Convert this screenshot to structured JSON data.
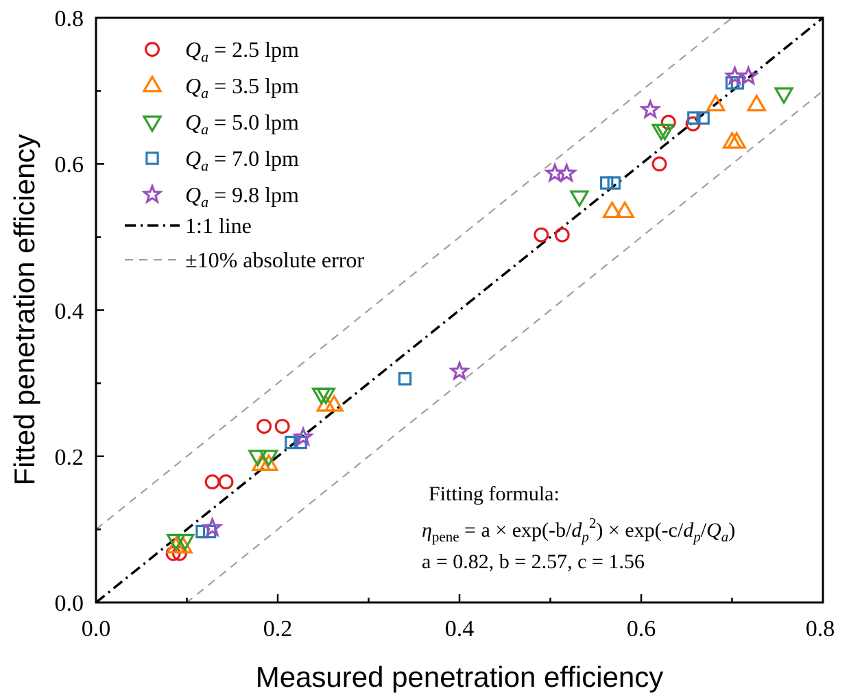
{
  "chart_data": {
    "type": "scatter",
    "xlabel": "Measured penetration efficiency",
    "ylabel": "Fitted penetration efficiency",
    "xlim": [
      0.0,
      0.8
    ],
    "ylim": [
      0.0,
      0.8
    ],
    "xticks": [
      "0.0",
      "0.2",
      "0.4",
      "0.6",
      "0.8"
    ],
    "yticks": [
      "0.0",
      "0.2",
      "0.4",
      "0.6",
      "0.8"
    ],
    "xtick_values": [
      0.0,
      0.2,
      0.4,
      0.6,
      0.8
    ],
    "ytick_values": [
      0.0,
      0.2,
      0.4,
      0.6,
      0.8
    ],
    "grid": false,
    "legend_position": "top-left",
    "series": [
      {
        "name_var": "Q",
        "name_sub": "a",
        "name_rest": " = 2.5 lpm",
        "marker": "circle",
        "color": "#e41a1c",
        "points": [
          [
            0.085,
            0.067
          ],
          [
            0.092,
            0.067
          ],
          [
            0.128,
            0.165
          ],
          [
            0.143,
            0.165
          ],
          [
            0.185,
            0.241
          ],
          [
            0.205,
            0.241
          ],
          [
            0.49,
            0.503
          ],
          [
            0.513,
            0.503
          ],
          [
            0.62,
            0.6
          ],
          [
            0.63,
            0.657
          ],
          [
            0.657,
            0.655
          ]
        ]
      },
      {
        "name_var": "Q",
        "name_sub": "a",
        "name_rest": " = 3.5 lpm",
        "marker": "triangle-up",
        "color": "#ff7f00",
        "points": [
          [
            0.088,
            0.076
          ],
          [
            0.096,
            0.076
          ],
          [
            0.182,
            0.189
          ],
          [
            0.19,
            0.189
          ],
          [
            0.253,
            0.27
          ],
          [
            0.262,
            0.27
          ],
          [
            0.568,
            0.535
          ],
          [
            0.582,
            0.535
          ],
          [
            0.682,
            0.681
          ],
          [
            0.7,
            0.63
          ],
          [
            0.705,
            0.63
          ],
          [
            0.727,
            0.681
          ]
        ]
      },
      {
        "name_var": "Q",
        "name_sub": "a",
        "name_rest": " = 5.0 lpm",
        "marker": "triangle-down",
        "color": "#33a02c",
        "points": [
          [
            0.088,
            0.085
          ],
          [
            0.098,
            0.085
          ],
          [
            0.178,
            0.2
          ],
          [
            0.19,
            0.2
          ],
          [
            0.248,
            0.285
          ],
          [
            0.253,
            0.285
          ],
          [
            0.532,
            0.555
          ],
          [
            0.622,
            0.646
          ],
          [
            0.626,
            0.646
          ],
          [
            0.757,
            0.696
          ]
        ]
      },
      {
        "name_var": "Q",
        "name_sub": "a",
        "name_rest": " = 7.0 lpm",
        "marker": "square",
        "color": "#2c7bb6",
        "points": [
          [
            0.117,
            0.097
          ],
          [
            0.125,
            0.097
          ],
          [
            0.215,
            0.219
          ],
          [
            0.225,
            0.219
          ],
          [
            0.34,
            0.306
          ],
          [
            0.562,
            0.574
          ],
          [
            0.57,
            0.574
          ],
          [
            0.658,
            0.663
          ],
          [
            0.668,
            0.663
          ],
          [
            0.7,
            0.711
          ],
          [
            0.706,
            0.711
          ]
        ]
      },
      {
        "name_var": "Q",
        "name_sub": "a",
        "name_rest": " = 9.8 lpm",
        "marker": "star",
        "color": "#9b4fbf",
        "points": [
          [
            0.128,
            0.102
          ],
          [
            0.228,
            0.226
          ],
          [
            0.4,
            0.316
          ],
          [
            0.505,
            0.587
          ],
          [
            0.518,
            0.587
          ],
          [
            0.61,
            0.674
          ],
          [
            0.703,
            0.72
          ],
          [
            0.718,
            0.72
          ]
        ]
      }
    ],
    "lines": [
      {
        "name": "1:1 line",
        "slope": 1.0,
        "intercept": 0.0,
        "style": "dash-dot",
        "color": "#000000"
      },
      {
        "name": "±10% absolute error",
        "slope": 1.0,
        "intercept": 0.1,
        "style": "dashed",
        "color": "#a0a0a0"
      },
      {
        "slope": 1.0,
        "intercept": -0.1,
        "style": "dashed",
        "color": "#a0a0a0"
      }
    ],
    "annotation": {
      "title": "Fitting formula:",
      "formula_eta": "η",
      "formula_eta_sub": "pene",
      "formula_part1": " = a × exp(-b/",
      "formula_dp": "d",
      "formula_dp_sub": "p",
      "formula_dp_sup": "2",
      "formula_part2": ") × exp(-c/",
      "formula_part3": "/",
      "formula_q": "Q",
      "formula_q_sub": "a",
      "formula_part4": ")",
      "params": "a = 0.82, b = 2.57, c = 1.56"
    }
  }
}
